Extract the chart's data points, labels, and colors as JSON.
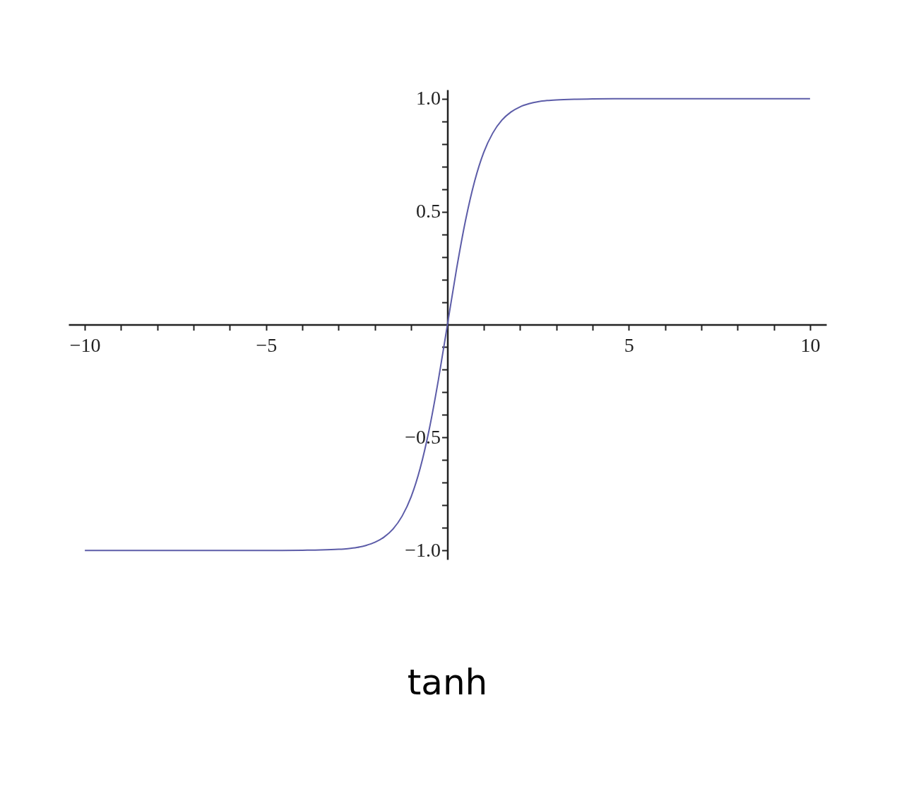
{
  "chart_data": {
    "type": "line",
    "title": "tanh",
    "x": [
      -10,
      -8,
      -6,
      -5,
      -4,
      -3.5,
      -3,
      -2.75,
      -2.5,
      -2.25,
      -2,
      -1.75,
      -1.5,
      -1.25,
      -1,
      -0.75,
      -0.5,
      -0.25,
      0,
      0.25,
      0.5,
      0.75,
      1,
      1.25,
      1.5,
      1.75,
      2,
      2.25,
      2.5,
      2.75,
      3,
      3.5,
      4,
      5,
      6,
      8,
      10
    ],
    "series": [
      {
        "color": "#5c5ca8",
        "values": [
          -1,
          -1,
          -1,
          -1,
          -0.999,
          -0.998,
          -0.995,
          -0.992,
          -0.987,
          -0.978,
          -0.964,
          -0.941,
          -0.905,
          -0.848,
          -0.762,
          -0.635,
          -0.462,
          -0.245,
          0,
          0.245,
          0.462,
          0.635,
          0.762,
          0.848,
          0.905,
          0.941,
          0.964,
          0.978,
          0.987,
          0.992,
          0.995,
          0.998,
          0.999,
          1,
          1,
          1,
          1
        ]
      }
    ],
    "xlim": [
      -10.45,
      10.45
    ],
    "ylim": [
      -1.04,
      1.04
    ],
    "xticks": [
      {
        "value": -10,
        "label": "−10"
      },
      {
        "value": -9,
        "label": null
      },
      {
        "value": -8,
        "label": null
      },
      {
        "value": -7,
        "label": null
      },
      {
        "value": -6,
        "label": null
      },
      {
        "value": -5,
        "label": "−5"
      },
      {
        "value": -4,
        "label": null
      },
      {
        "value": -3,
        "label": null
      },
      {
        "value": -2,
        "label": null
      },
      {
        "value": -1,
        "label": null
      },
      {
        "value": 1,
        "label": null
      },
      {
        "value": 2,
        "label": null
      },
      {
        "value": 3,
        "label": null
      },
      {
        "value": 4,
        "label": null
      },
      {
        "value": 5,
        "label": "5"
      },
      {
        "value": 6,
        "label": null
      },
      {
        "value": 7,
        "label": null
      },
      {
        "value": 8,
        "label": null
      },
      {
        "value": 9,
        "label": null
      },
      {
        "value": 10,
        "label": "10"
      }
    ],
    "yticks": [
      {
        "value": -1,
        "label": "−1.0"
      },
      {
        "value": -0.9,
        "label": null
      },
      {
        "value": -0.8,
        "label": null
      },
      {
        "value": -0.7,
        "label": null
      },
      {
        "value": -0.6,
        "label": null
      },
      {
        "value": -0.5,
        "label": "−0.5"
      },
      {
        "value": -0.4,
        "label": null
      },
      {
        "value": -0.3,
        "label": null
      },
      {
        "value": -0.2,
        "label": null
      },
      {
        "value": -0.1,
        "label": null
      },
      {
        "value": 0.1,
        "label": null
      },
      {
        "value": 0.2,
        "label": null
      },
      {
        "value": 0.3,
        "label": null
      },
      {
        "value": 0.4,
        "label": null
      },
      {
        "value": 0.5,
        "label": "0.5"
      },
      {
        "value": 0.6,
        "label": null
      },
      {
        "value": 0.7,
        "label": null
      },
      {
        "value": 0.8,
        "label": null
      },
      {
        "value": 0.9,
        "label": null
      },
      {
        "value": 1,
        "label": "1.0"
      }
    ],
    "grid": false,
    "marker": "none",
    "line_style": "solid"
  }
}
